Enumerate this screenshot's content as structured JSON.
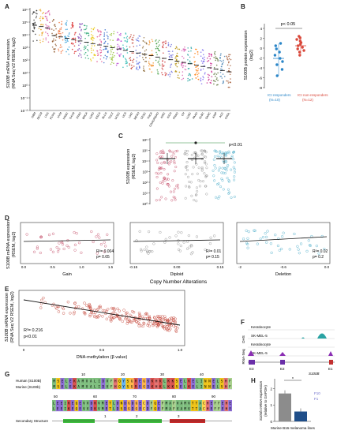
{
  "panels": {
    "A": {
      "letter": "A",
      "ylabel": "S100B mRNA expression,\n(RNA Seq V2 RSEM, log2)",
      "ylabel_l1": "S100B mRNA expression,",
      "ylabel_l2": "(RNA Seq V2 RSEM, log2)",
      "yticks": [
        "10⁶",
        "10⁵",
        "10⁴",
        "10³",
        "10²",
        "10¹",
        "10⁰",
        "10⁻¹",
        "10⁻²"
      ],
      "categories": [
        "GBM",
        "SKCM",
        "LGG",
        "PCPG",
        "UVM",
        "HNSC",
        "THYM",
        "STAD",
        "BRCA",
        "LUAD",
        "ESCA",
        "BLCA",
        "TGCT",
        "UCEC",
        "UCS",
        "LIHC",
        "MESO",
        "CESC",
        "THCA",
        "COAD/READ",
        "KIRC",
        "KICH",
        "PRAD",
        "OV",
        "LUSC",
        "PAAD",
        "DLBC",
        "SARC",
        "KIRP",
        "ACC",
        "CHOL"
      ],
      "tick_labels": [
        "GBM",
        "SKCM",
        "LGG",
        "PCPG",
        "UVM",
        "HNSC",
        "THYM",
        "STAD",
        "BRCA",
        "LUAD",
        "ESCA",
        "BLCA",
        "TGCT",
        "UCEC",
        "UCS",
        "LIHC",
        "MESO",
        "CESC",
        "THCA",
        "COAD/READ",
        "KIRC",
        "KICH",
        "PRAD",
        "OV",
        "LUSC",
        "PAAD",
        "DLBC",
        "SARC",
        "KIRP",
        "ACC",
        "CHOL"
      ]
    },
    "B": {
      "letter": "B",
      "ylabel_l1": "S100B protein expression",
      "ylabel_l2": "(log2)",
      "pvalue": "p< 0.05",
      "yticks": [
        "4",
        "2",
        "0",
        "-2",
        "-4",
        "-6",
        "-8"
      ],
      "legend_responders": "ICI responders",
      "legend_responders_n": "(N=10)",
      "legend_nonresponders": "ICI non-responders",
      "legend_nonresponders_n": "(N=12)",
      "colors": {
        "responders": "#2b86c8",
        "nonresponders": "#d9483b"
      }
    },
    "C": {
      "letter": "C",
      "ylabel_l1": "S100B expression",
      "ylabel_l2": "(RSEM, log2)",
      "pvalue": "p<0.01",
      "yticks": [
        "10⁶",
        "10⁵",
        "10⁴",
        "10³",
        "10²",
        "10¹",
        "10⁰"
      ]
    },
    "D": {
      "letter": "D",
      "ylabel_l1": "S100B mRNA expression",
      "ylabel_l2": "(RSEM, log2)",
      "xtitle": "Copy Number Alterations",
      "subplots": [
        {
          "label": "Gain",
          "r2": "R²= 0.004",
          "p": "p= 0.65",
          "xticks": [
            "0.0",
            "0.5",
            "1.0",
            "1.5"
          ],
          "color": "#c0415e"
        },
        {
          "label": "Diploid",
          "r2": "R²= 0.01",
          "p": "p= 0.15",
          "xticks": [
            "-0.15",
            "0.00",
            "0.15"
          ],
          "color": "#8a8a8a"
        },
        {
          "label": "Deletion",
          "r2": "R²= 0.02",
          "p": "p= 0.2",
          "xticks": [
            "-2",
            "-0.6",
            "0.0"
          ],
          "color": "#3ba5c4"
        }
      ]
    },
    "E": {
      "letter": "E",
      "ylabel_l1": "S100B mRNA expression",
      "ylabel_l2": "(RNA Seq V2 RSEM, log2)",
      "xlabel": "DNA-methylation (β value)",
      "r2": "R²= 0.216",
      "p": "p<0.01",
      "xticks": [
        "0",
        "0.5",
        "1.0"
      ],
      "color": "#c0392b"
    },
    "F": {
      "letter": "F",
      "tracks": [
        "Keratinocyte",
        "SK-MEL-5",
        "Keratinocyte",
        "SK-MEL-5"
      ],
      "dhs": "DHS",
      "rnaseq": "RNA-Seq",
      "exons": [
        "E3",
        "E2",
        "E1"
      ],
      "gene": "S100B"
    },
    "G": {
      "letter": "G",
      "human": "Human (S100B)",
      "murine": "Murine (S100b)",
      "secondary": "Secondary Structure",
      "pos_top": [
        "10",
        "20",
        "30",
        "40"
      ],
      "pos_bot": [
        "50",
        "60",
        "70",
        "80",
        "90"
      ],
      "seq_h1": "MSELEKAMVALIDVFHQYSGREGDKHKLKKSELKELINNELSHF",
      "seq_m1": "MSELEKAMVALIDVFHQYSGREGDKHKLKKSELKELINNELSHF",
      "seq_h2": "LEEIKEQEVVDKVMETLDNDGDGECDFQEFMAFVAMVTTACHEFFEHE",
      "seq_m2": "LEEIKEQEVVDKVMETLDSDGDGECDFQEFMAFVAMVTTACHEFFEHE",
      "ss_marks": [
        "1",
        "2",
        "3"
      ]
    },
    "H": {
      "letter": "H",
      "ylabel_l1": "S100b mRNA expression",
      "ylabel_l2": "(relative to GAPDH)",
      "xlabel": "Murine B16 melanoma lines",
      "yticks": [
        "0",
        "1",
        "2"
      ],
      "legend": [
        "F10",
        "F1"
      ],
      "colors": [
        "#8c8c8c",
        "#1f4e89"
      ]
    }
  },
  "chart_data": [
    {
      "type": "bar",
      "panel": "H",
      "categories": [
        "F10",
        "F1"
      ],
      "values": [
        1.7,
        0.6
      ],
      "ylim": [
        0,
        2.5
      ],
      "ylabel": "S100b mRNA expression (relative to GAPDH)",
      "xlabel": "Murine B16 melanoma lines"
    }
  ]
}
